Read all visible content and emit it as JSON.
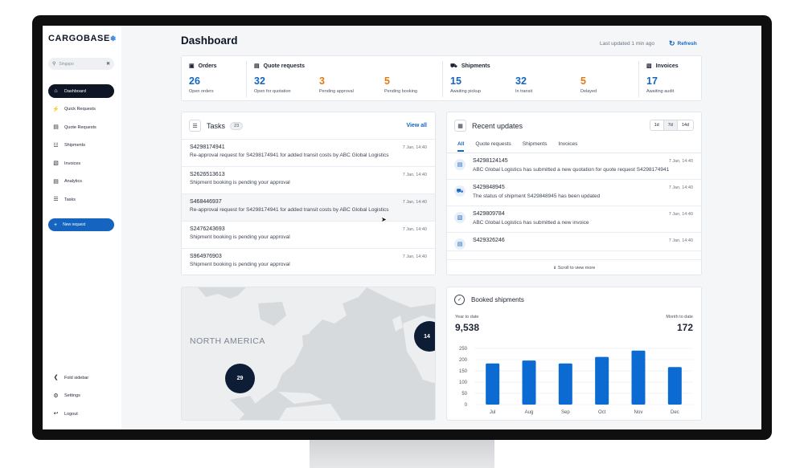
{
  "app": {
    "logo": "CARGOBASE",
    "logo_mark": "❄"
  },
  "search": {
    "value": "Singapo"
  },
  "nav": {
    "items": [
      {
        "label": "Dashboard",
        "icon": "home-icon"
      },
      {
        "label": "Quick Requests",
        "icon": "bolt-icon"
      },
      {
        "label": "Quote Requests",
        "icon": "document-icon"
      },
      {
        "label": "Shipments",
        "icon": "ship-icon"
      },
      {
        "label": "Invoices",
        "icon": "invoice-icon"
      },
      {
        "label": "Analytics",
        "icon": "analytics-icon"
      },
      {
        "label": "Tasks",
        "icon": "tasks-icon"
      }
    ],
    "new_request": "New request",
    "bottom": [
      {
        "label": "Fold sidebar",
        "icon": "fold-icon"
      },
      {
        "label": "Settings",
        "icon": "gear-icon"
      },
      {
        "label": "Logout",
        "icon": "logout-icon"
      }
    ]
  },
  "header": {
    "title": "Dashboard",
    "updated": "Last updated 1 min ago",
    "refresh": "Refresh"
  },
  "stats": {
    "orders": {
      "title": "Orders",
      "items": [
        {
          "value": "26",
          "label": "Open orders"
        }
      ]
    },
    "quotes": {
      "title": "Quote requests",
      "items": [
        {
          "value": "32",
          "label": "Open for quotation"
        },
        {
          "value": "3",
          "label": "Pending approval"
        },
        {
          "value": "5",
          "label": "Pending booking"
        }
      ]
    },
    "shipments": {
      "title": "Shipments",
      "items": [
        {
          "value": "15",
          "label": "Awaiting pickup"
        },
        {
          "value": "32",
          "label": "In transit"
        },
        {
          "value": "5",
          "label": "Delayed"
        }
      ]
    },
    "invoices": {
      "title": "Invoices",
      "items": [
        {
          "value": "17",
          "label": "Awaiting audit"
        }
      ]
    }
  },
  "tasks": {
    "title": "Tasks",
    "count": "23",
    "view_all": "View all",
    "rows": [
      {
        "id": "S4298174941",
        "desc": "Re-approval request for S4298174941 for added transit costs by ABC Global Logistics",
        "date": "7 Jan, 14:40"
      },
      {
        "id": "S2626513613",
        "desc": "Shipment booking is pending your approval",
        "date": "7 Jan, 14:40"
      },
      {
        "id": "S468446937",
        "desc": "Re-approval request for S4298174941 for added transit costs by ABC Global Logistics",
        "date": "7 Jan, 14:40"
      },
      {
        "id": "S2476243693",
        "desc": "Shipment booking is pending your approval",
        "date": "7 Jan, 14:40"
      },
      {
        "id": "S964976903",
        "desc": "Shipment booking is pending your approval",
        "date": "7 Jan, 14:40"
      }
    ]
  },
  "updates": {
    "title": "Recent updates",
    "ranges": [
      "1d",
      "7d",
      "14d"
    ],
    "tabs": [
      "All",
      "Quote requests",
      "Shipments",
      "Invoices"
    ],
    "rows": [
      {
        "id": "S4298124145",
        "text": "ABC Global Logistics has submitted a new quotation for quote request S4298174941",
        "date": "7 Jan, 14:40",
        "icon": "document-icon"
      },
      {
        "id": "S429848945",
        "text": "The status of shipment S429848945 has been updated",
        "date": "7 Jan, 14:40",
        "icon": "truck-icon"
      },
      {
        "id": "S429809784",
        "text": "ABC Global Logistics has submitted a new invoice",
        "date": "7 Jan, 14:40",
        "icon": "invoice-icon"
      },
      {
        "id": "S429326246",
        "text": "",
        "date": "7 Jan, 14:40",
        "icon": "document-icon"
      }
    ],
    "scroll_more": "Scroll to view more"
  },
  "map": {
    "region_label": "NORTH AMERICA",
    "clusters": [
      {
        "count": "29"
      },
      {
        "count": "14"
      }
    ]
  },
  "booked": {
    "title": "Booked shipments",
    "ytd_label": "Year to date",
    "ytd_value": "9,538",
    "mtd_label": "Month to date",
    "mtd_value": "172"
  },
  "chart_data": {
    "type": "bar",
    "categories": [
      "Jul",
      "Aug",
      "Sep",
      "Oct",
      "Nov",
      "Dec"
    ],
    "values": [
      183,
      196,
      183,
      212,
      240,
      167
    ],
    "ylim": [
      0,
      250
    ],
    "yticks": [
      0,
      50,
      100,
      150,
      200,
      250
    ],
    "color": "#0b6bd3"
  }
}
